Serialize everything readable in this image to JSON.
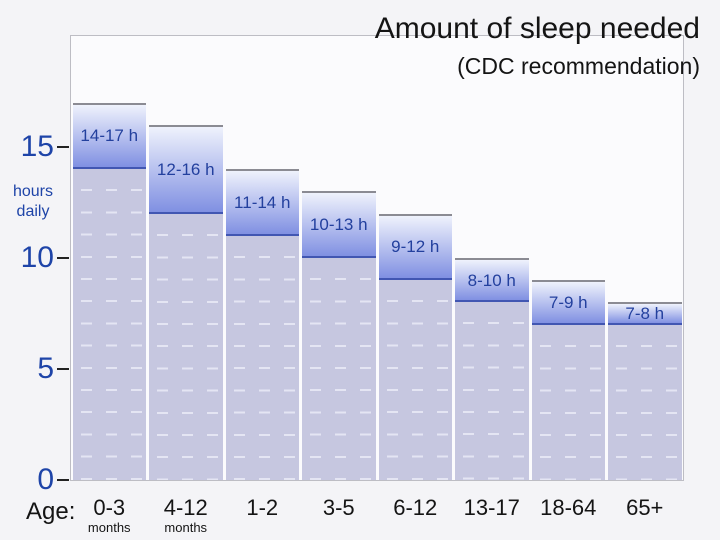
{
  "chart_data": {
    "type": "bar",
    "title": "Amount of sleep needed",
    "subtitle": "(CDC recommendation)",
    "ylabel_line1": "hours",
    "ylabel_line2": "daily",
    "xlabel": "Age:",
    "ylim": [
      0,
      20
    ],
    "yticks": [
      0,
      5,
      10,
      15
    ],
    "grid": "dashed hour marks inside bar bodies",
    "legend_position": "none",
    "bars": [
      {
        "category": "0-3",
        "category_sub": "months",
        "min": 14,
        "max": 17,
        "label": "14-17 h"
      },
      {
        "category": "4-12",
        "category_sub": "months",
        "min": 12,
        "max": 16,
        "label": "12-16 h"
      },
      {
        "category": "1-2",
        "category_sub": "",
        "min": 11,
        "max": 14,
        "label": "11-14 h"
      },
      {
        "category": "3-5",
        "category_sub": "",
        "min": 10,
        "max": 13,
        "label": "10-13 h"
      },
      {
        "category": "6-12",
        "category_sub": "",
        "min": 9,
        "max": 12,
        "label": "9-12 h"
      },
      {
        "category": "13-17",
        "category_sub": "",
        "min": 8,
        "max": 10,
        "label": "8-10 h"
      },
      {
        "category": "18-64",
        "category_sub": "",
        "min": 7,
        "max": 9,
        "label": "7-9 h"
      },
      {
        "category": "65+",
        "category_sub": "",
        "min": 7,
        "max": 8,
        "label": "7-8 h"
      }
    ]
  },
  "colors": {
    "page_bg": "#f4f4f7",
    "plot_bg": "#fbfbfd",
    "plot_border": "#bdbdc4",
    "band_top": "#eff2fc",
    "band_bottom": "#8090e2",
    "band_cap": "#8b8b93",
    "min_line": "#4156b2",
    "bar_body": "#c6c7e0",
    "bar_dash": "#e4e5f3",
    "bar_label_text": "#23409e",
    "axis_text": "#1e44a8",
    "tick_mark": "#222222",
    "title_text": "#141414"
  }
}
